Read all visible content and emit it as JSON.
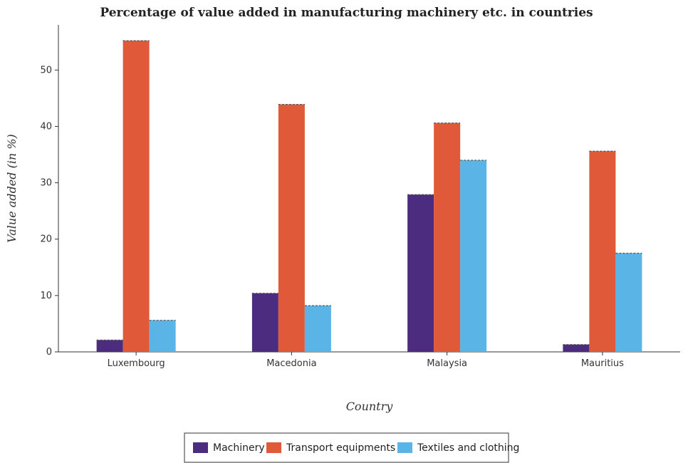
{
  "chart_data": {
    "type": "bar",
    "title": "Percentage of value added in manufacturing machinery etc. in countries",
    "xlabel": "Country",
    "ylabel": "Value added (in %)",
    "categories": [
      "Luxembourg",
      "Macedonia",
      "Malaysia",
      "Mauritius"
    ],
    "ylim": [
      0,
      58
    ],
    "yticks": [
      0,
      10,
      20,
      30,
      40,
      50
    ],
    "grid": false,
    "legend_position": "bottom",
    "series": [
      {
        "name": "Machinery",
        "color": "#4b2c7f",
        "values": [
          2.1,
          10.4,
          27.9,
          1.3
        ]
      },
      {
        "name": "Transport equipments",
        "color": "#e05a3a",
        "values": [
          55.2,
          43.9,
          40.6,
          35.6
        ]
      },
      {
        "name": "Textiles and clothing",
        "color": "#5ab4e5",
        "values": [
          5.6,
          8.2,
          34.0,
          17.5
        ]
      }
    ]
  }
}
